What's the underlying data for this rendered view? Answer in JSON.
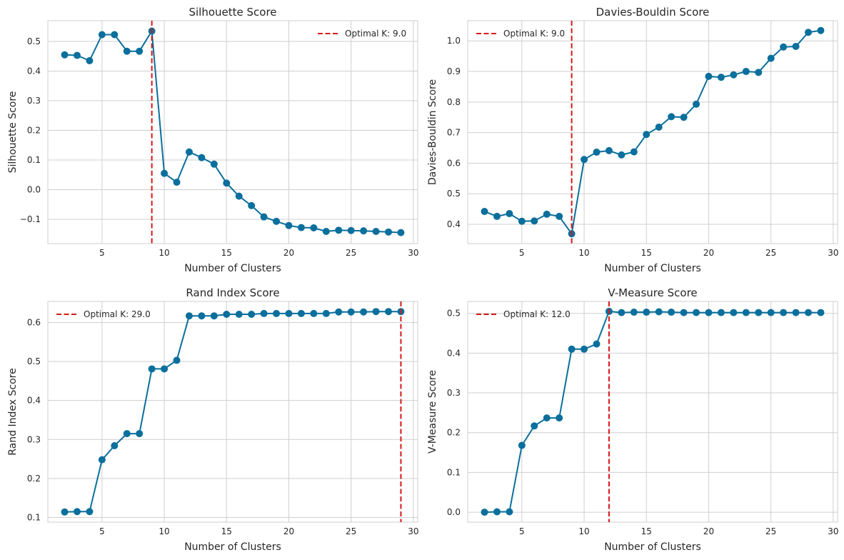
{
  "colors": {
    "series": "#0a6f9c",
    "optimal_line": "#d81818",
    "grid": "#cfcfcf",
    "frame": "#cfcfcf"
  },
  "chart_data": [
    {
      "type": "line",
      "title": "Silhouette Score",
      "xlabel": "Number of Clusters",
      "ylabel": "Silhouette Score",
      "xlim": [
        0.65,
        30.35
      ],
      "ylim": [
        -0.182,
        0.57
      ],
      "xticks": [
        5,
        10,
        15,
        20,
        25,
        30
      ],
      "yticks": [
        -0.1,
        0.0,
        0.1,
        0.2,
        0.3,
        0.4,
        0.5
      ],
      "ytick_labels": [
        "−0.1",
        "0.0",
        "0.1",
        "0.2",
        "0.3",
        "0.4",
        "0.5"
      ],
      "x": [
        2,
        3,
        4,
        5,
        6,
        7,
        8,
        9,
        10,
        11,
        12,
        13,
        14,
        15,
        16,
        17,
        18,
        19,
        20,
        21,
        22,
        23,
        24,
        25,
        26,
        27,
        28,
        29
      ],
      "y": [
        0.455,
        0.453,
        0.435,
        0.523,
        0.523,
        0.467,
        0.467,
        0.535,
        0.055,
        0.025,
        0.127,
        0.108,
        0.086,
        0.022,
        -0.022,
        -0.054,
        -0.092,
        -0.107,
        -0.121,
        -0.128,
        -0.129,
        -0.141,
        -0.137,
        -0.138,
        -0.139,
        -0.141,
        -0.143,
        -0.145
      ],
      "optimal_k": 9,
      "legend_label": "Optimal K: 9.0",
      "legend_position": "upper right",
      "grid": true
    },
    {
      "type": "line",
      "title": "Davies-Bouldin Score",
      "xlabel": "Number of Clusters",
      "ylabel": "Davies-Bouldin Score",
      "xlim": [
        0.65,
        30.35
      ],
      "ylim": [
        0.337,
        1.066
      ],
      "xticks": [
        5,
        10,
        15,
        20,
        25,
        30
      ],
      "yticks": [
        0.4,
        0.5,
        0.6,
        0.7,
        0.8,
        0.9,
        1.0
      ],
      "ytick_labels": [
        "0.4",
        "0.5",
        "0.6",
        "0.7",
        "0.8",
        "0.9",
        "1.0"
      ],
      "x": [
        2,
        3,
        4,
        5,
        6,
        7,
        8,
        9,
        10,
        11,
        12,
        13,
        14,
        15,
        16,
        17,
        18,
        19,
        20,
        21,
        22,
        23,
        24,
        25,
        26,
        27,
        28,
        29
      ],
      "y": [
        0.442,
        0.426,
        0.435,
        0.41,
        0.411,
        0.433,
        0.426,
        0.369,
        0.612,
        0.636,
        0.641,
        0.627,
        0.637,
        0.694,
        0.718,
        0.752,
        0.75,
        0.793,
        0.884,
        0.881,
        0.889,
        0.9,
        0.897,
        0.943,
        0.98,
        0.982,
        1.028,
        1.034
      ],
      "optimal_k": 9,
      "legend_label": "Optimal K: 9.0",
      "legend_position": "upper left",
      "grid": true
    },
    {
      "type": "line",
      "title": "Rand Index Score",
      "xlabel": "Number of Clusters",
      "ylabel": "Rand Index Score",
      "xlim": [
        0.65,
        30.35
      ],
      "ylim": [
        0.088,
        0.654
      ],
      "xticks": [
        5,
        10,
        15,
        20,
        25,
        30
      ],
      "yticks": [
        0.1,
        0.2,
        0.3,
        0.4,
        0.5,
        0.6
      ],
      "ytick_labels": [
        "0.1",
        "0.2",
        "0.3",
        "0.4",
        "0.5",
        "0.6"
      ],
      "x": [
        2,
        3,
        4,
        5,
        6,
        7,
        8,
        9,
        10,
        11,
        12,
        13,
        14,
        15,
        16,
        17,
        18,
        19,
        20,
        21,
        22,
        23,
        24,
        25,
        26,
        27,
        28,
        29
      ],
      "y": [
        0.114,
        0.115,
        0.115,
        0.248,
        0.284,
        0.315,
        0.315,
        0.481,
        0.481,
        0.503,
        0.617,
        0.617,
        0.617,
        0.621,
        0.621,
        0.621,
        0.623,
        0.623,
        0.623,
        0.623,
        0.623,
        0.623,
        0.627,
        0.627,
        0.627,
        0.628,
        0.628,
        0.628
      ],
      "optimal_k": 29,
      "legend_label": "Optimal K: 29.0",
      "legend_position": "upper left",
      "grid": true
    },
    {
      "type": "line",
      "title": "V-Measure Score",
      "xlabel": "Number of Clusters",
      "ylabel": "V-Measure Score",
      "xlim": [
        0.65,
        30.35
      ],
      "ylim": [
        -0.025,
        0.53
      ],
      "xticks": [
        5,
        10,
        15,
        20,
        25,
        30
      ],
      "yticks": [
        0.0,
        0.1,
        0.2,
        0.3,
        0.4,
        0.5
      ],
      "ytick_labels": [
        "0.0",
        "0.1",
        "0.2",
        "0.3",
        "0.4",
        "0.5"
      ],
      "x": [
        2,
        3,
        4,
        5,
        6,
        7,
        8,
        9,
        10,
        11,
        12,
        13,
        14,
        15,
        16,
        17,
        18,
        19,
        20,
        21,
        22,
        23,
        24,
        25,
        26,
        27,
        28,
        29
      ],
      "y": [
        0.0,
        0.001,
        0.001,
        0.168,
        0.217,
        0.237,
        0.237,
        0.41,
        0.41,
        0.423,
        0.505,
        0.502,
        0.503,
        0.503,
        0.504,
        0.503,
        0.502,
        0.502,
        0.502,
        0.502,
        0.502,
        0.502,
        0.502,
        0.502,
        0.502,
        0.502,
        0.502,
        0.502
      ],
      "optimal_k": 12,
      "legend_label": "Optimal K: 12.0",
      "legend_position": "upper left",
      "grid": true
    }
  ]
}
